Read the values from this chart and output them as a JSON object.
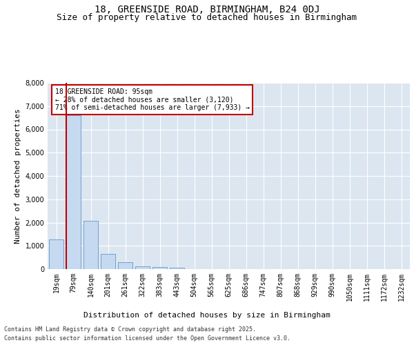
{
  "title": "18, GREENSIDE ROAD, BIRMINGHAM, B24 0DJ",
  "subtitle": "Size of property relative to detached houses in Birmingham",
  "xlabel": "Distribution of detached houses by size in Birmingham",
  "ylabel": "Number of detached properties",
  "categories": [
    "19sqm",
    "79sqm",
    "140sqm",
    "201sqm",
    "261sqm",
    "322sqm",
    "383sqm",
    "443sqm",
    "504sqm",
    "565sqm",
    "625sqm",
    "686sqm",
    "747sqm",
    "807sqm",
    "868sqm",
    "929sqm",
    "990sqm",
    "1050sqm",
    "1111sqm",
    "1172sqm",
    "1232sqm"
  ],
  "values": [
    1280,
    6620,
    2080,
    650,
    290,
    110,
    80,
    50,
    0,
    0,
    0,
    0,
    0,
    0,
    0,
    0,
    0,
    0,
    0,
    0,
    0
  ],
  "bar_color": "#c5d9f1",
  "bar_edge_color": "#6496c8",
  "plot_bg_color": "#dce6f1",
  "fig_bg_color": "#ffffff",
  "grid_color": "#ffffff",
  "vline_color": "#c00000",
  "vline_x": 0.57,
  "annotation_text": "18 GREENSIDE ROAD: 95sqm\n← 28% of detached houses are smaller (3,120)\n71% of semi-detached houses are larger (7,933) →",
  "annotation_box_color": "#c00000",
  "ylim": [
    0,
    8000
  ],
  "yticks": [
    0,
    1000,
    2000,
    3000,
    4000,
    5000,
    6000,
    7000,
    8000
  ],
  "title_fontsize": 10,
  "subtitle_fontsize": 9,
  "ylabel_fontsize": 8,
  "xlabel_fontsize": 8,
  "tick_fontsize": 7,
  "annot_fontsize": 7,
  "footer_line1": "Contains HM Land Registry data © Crown copyright and database right 2025.",
  "footer_line2": "Contains public sector information licensed under the Open Government Licence v3.0.",
  "footer_fontsize": 6
}
